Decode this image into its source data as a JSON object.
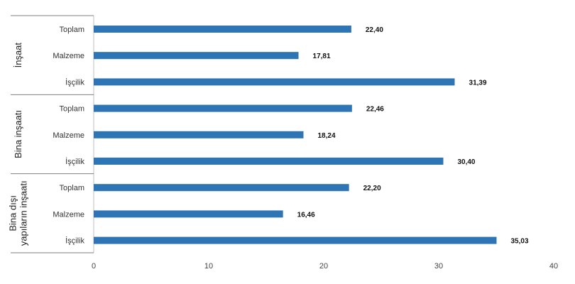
{
  "chart_data": {
    "type": "bar",
    "orientation": "horizontal",
    "groups": [
      {
        "label": "İnşaat",
        "categories": [
          "Toplam",
          "Malzeme",
          "İşçilik"
        ],
        "values": [
          22.4,
          17.81,
          31.39
        ],
        "value_labels": [
          "22,40",
          "17,81",
          "31,39"
        ]
      },
      {
        "label": "Bina inşaatı",
        "categories": [
          "Toplam",
          "Malzeme",
          "İşçilik"
        ],
        "values": [
          22.46,
          18.24,
          30.4
        ],
        "value_labels": [
          "22,46",
          "18,24",
          "30,40"
        ]
      },
      {
        "label": "Bina dışı yapıların inşaatı",
        "label_lines": [
          "Bina dışı",
          "yapıların inşaatı"
        ],
        "categories": [
          "Toplam",
          "Malzeme",
          "İşçilik"
        ],
        "values": [
          22.2,
          16.46,
          35.03
        ],
        "value_labels": [
          "22,20",
          "16,46",
          "35,03"
        ]
      }
    ],
    "x_ticks": [
      "0",
      "10",
      "20",
      "30",
      "40"
    ],
    "xlim": [
      0,
      40
    ],
    "bar_color": "#2E75B6",
    "grid": false,
    "legend": "none"
  }
}
